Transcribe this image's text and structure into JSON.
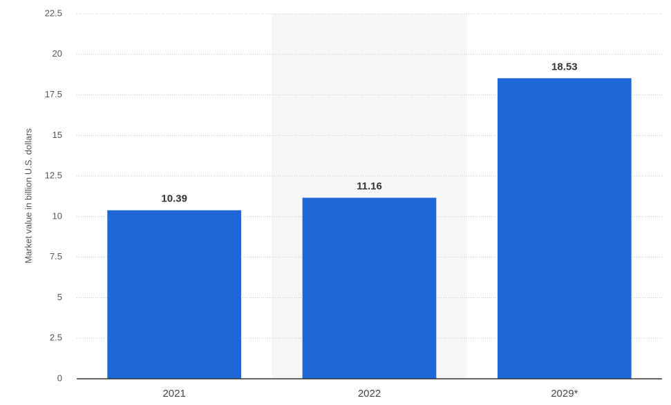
{
  "chart_data": {
    "type": "bar",
    "y_label": "Market value in billion U.S. dollars",
    "categories": [
      "2021",
      "2022",
      "2029*"
    ],
    "values": [
      10.39,
      11.16,
      18.53
    ],
    "color": "#1f67d6",
    "ylim": [
      0,
      22.5
    ],
    "yticks": [
      0,
      2.5,
      5,
      7.5,
      10,
      12.5,
      15,
      17.5,
      20,
      22.5
    ],
    "grid": true
  }
}
